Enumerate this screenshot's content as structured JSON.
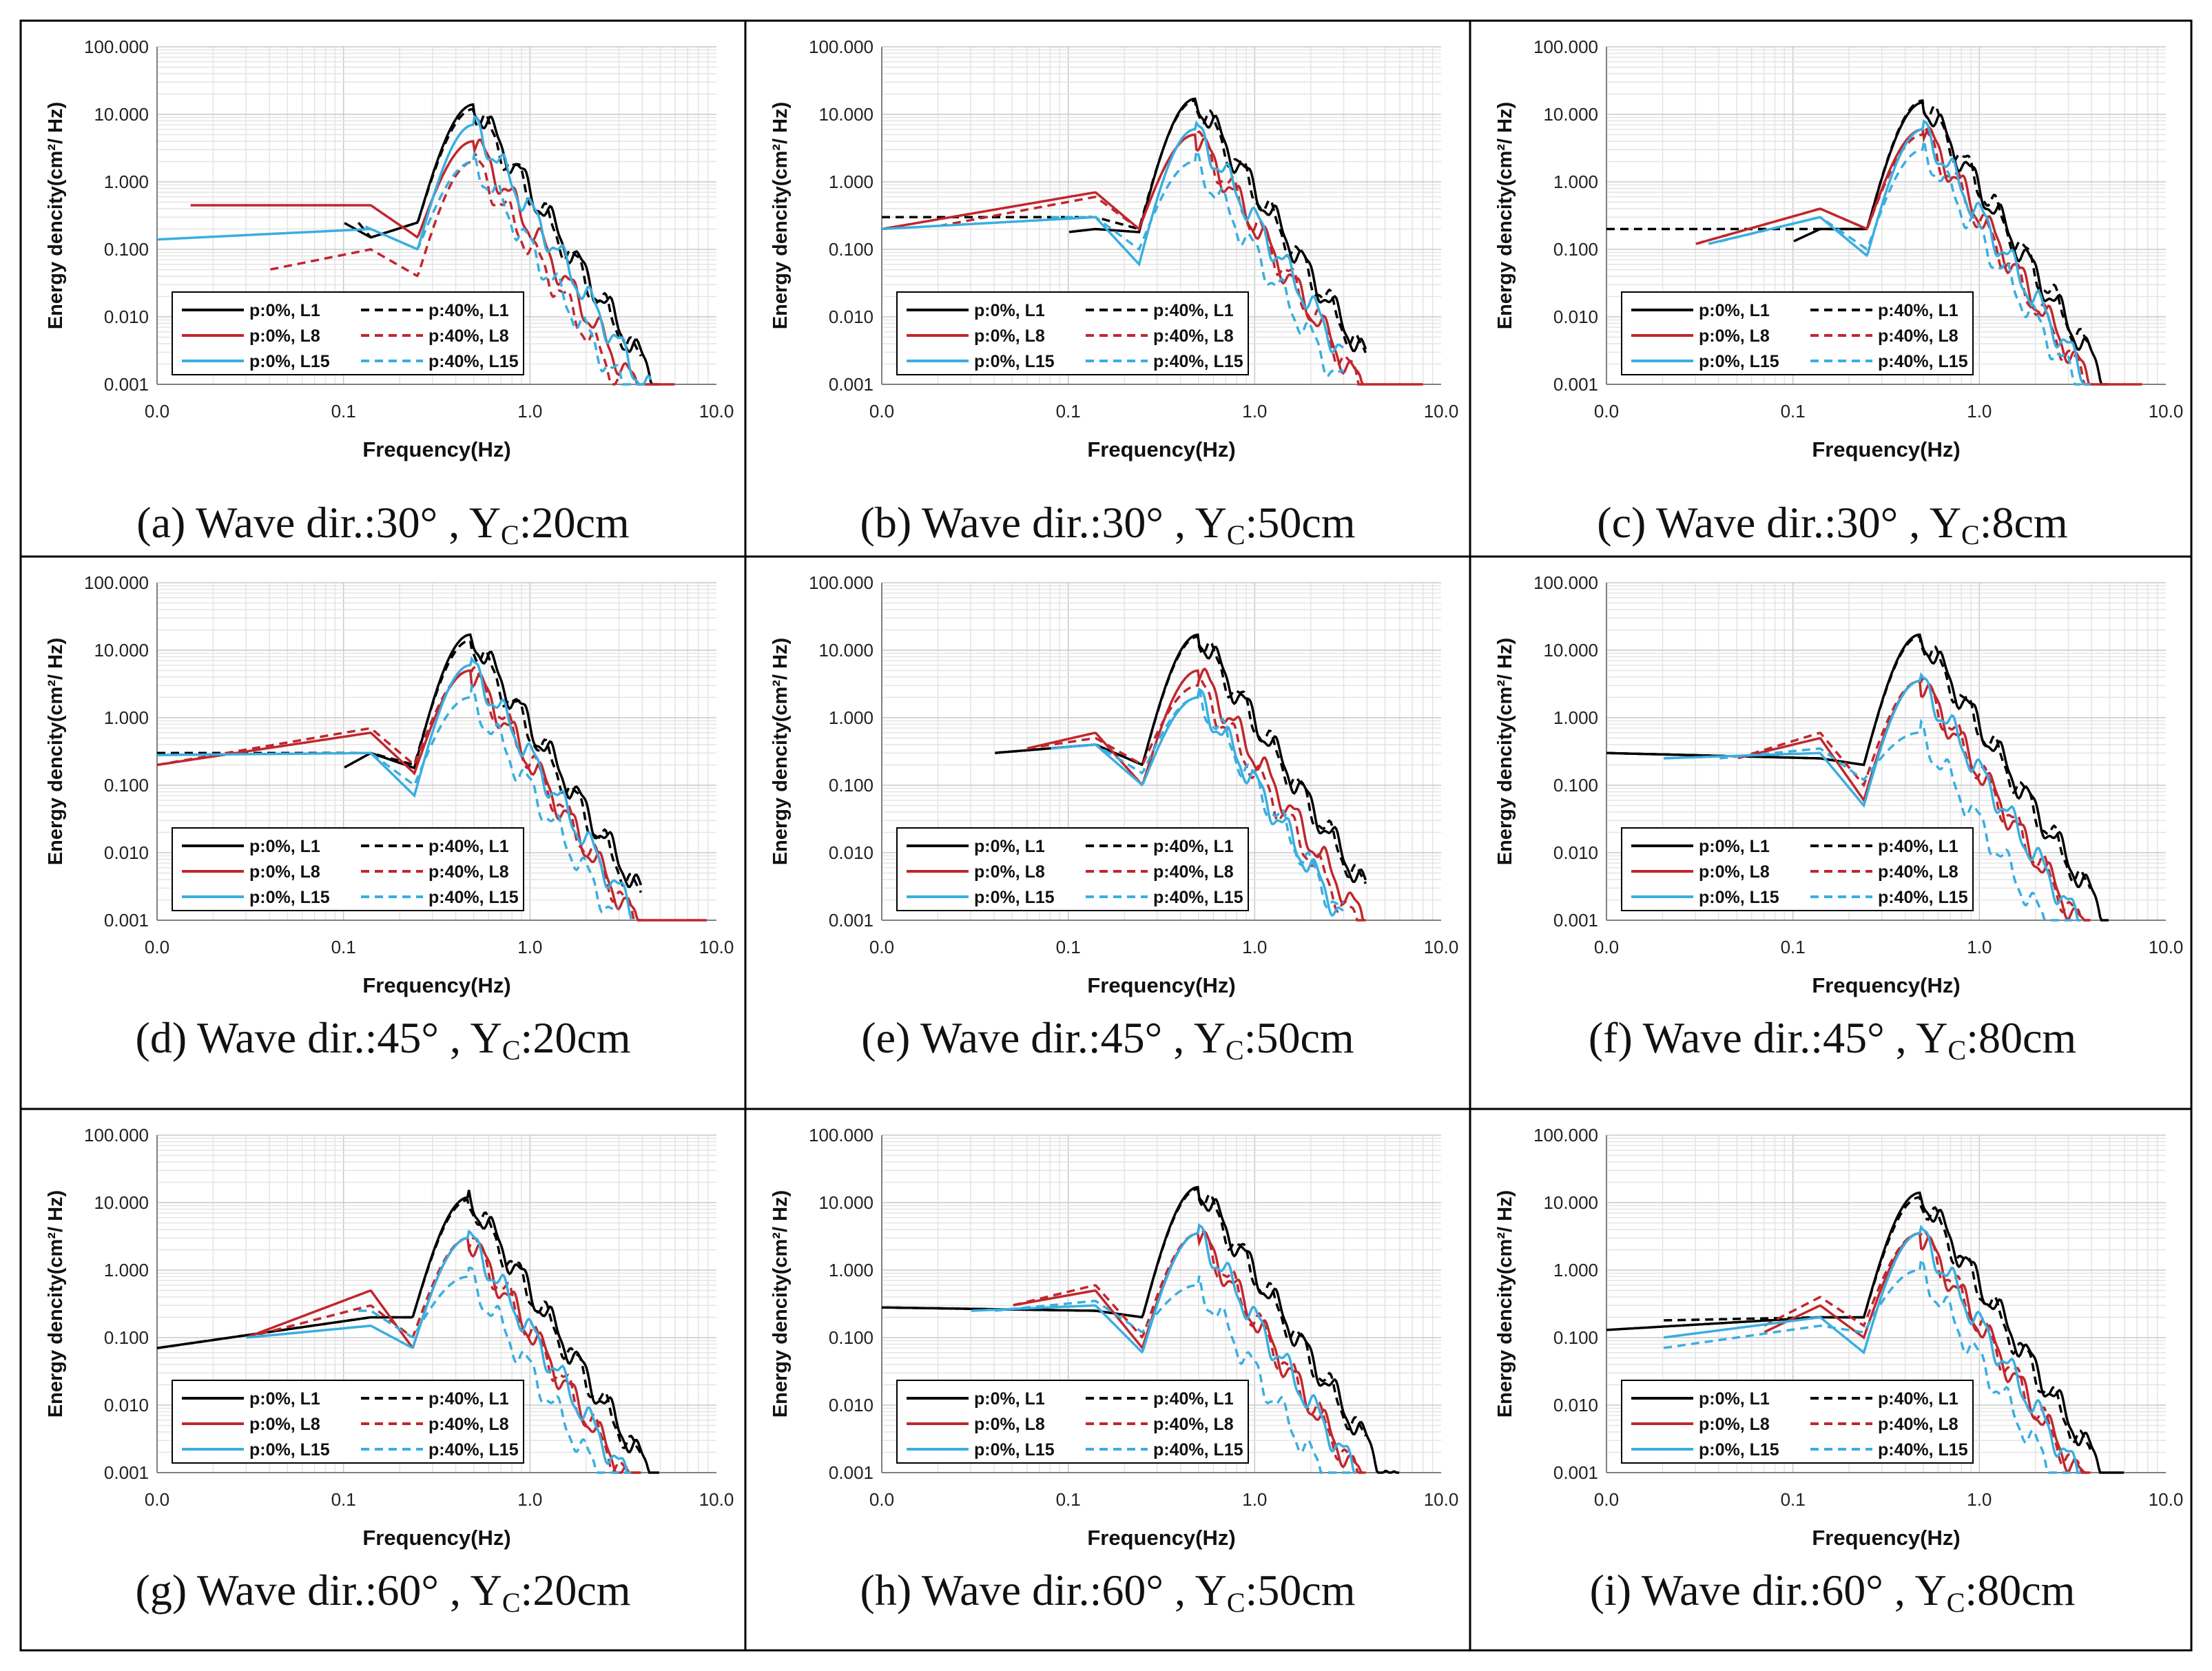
{
  "figure": {
    "panels": [
      {
        "caption": "(a) Wave dir.:30° , Y",
        "subscript": "C",
        "caption_tail": ":20cm"
      },
      {
        "caption": "(b) Wave dir.:30° , Y",
        "subscript": "C",
        "caption_tail": ":50cm"
      },
      {
        "caption": "(c) Wave dir.:30° , Y",
        "subscript": "C",
        "caption_tail": ":8cm"
      },
      {
        "caption": "(d) Wave dir.:45° , Y",
        "subscript": "C",
        "caption_tail": ":20cm"
      },
      {
        "caption": "(e) Wave dir.:45° , Y",
        "subscript": "C",
        "caption_tail": ":50cm"
      },
      {
        "caption": "(f) Wave dir.:45° , Y",
        "subscript": "C",
        "caption_tail": ":80cm"
      },
      {
        "caption": "(g) Wave dir.:60° , Y",
        "subscript": "C",
        "caption_tail": ":20cm"
      },
      {
        "caption": "(h) Wave dir.:60° , Y",
        "subscript": "C",
        "caption_tail": ":50cm"
      },
      {
        "caption": "(i) Wave dir.:60° , Y",
        "subscript": "C",
        "caption_tail": ":80cm"
      }
    ]
  },
  "chart_data": {
    "type": "line",
    "xscale": "log",
    "yscale": "log",
    "xlabel": "Frequency(Hz)",
    "ylabel": "Energy dencity(cm²/ Hz)",
    "xlim": [
      0.01,
      10
    ],
    "ylim": [
      0.001,
      100
    ],
    "xtick_labels": [
      "0.0",
      "0.1",
      "1.0",
      "10.0"
    ],
    "ytick_labels": [
      "0.001",
      "0.010",
      "0.100",
      "1.000",
      "10.000",
      "100.000"
    ],
    "legend_entries": [
      "p:0%, L1",
      "p:40%, L1",
      "p:0%, L8",
      "p:40%, L8",
      "p:0%, L15",
      "p:40%, L15"
    ],
    "series_style": {
      "p:0%, L1": {
        "color": "#000000",
        "dash": "solid"
      },
      "p:40%, L1": {
        "color": "#000000",
        "dash": "dashed"
      },
      "p:0%, L8": {
        "color": "#c0272d",
        "dash": "solid"
      },
      "p:40%, L8": {
        "color": "#c0272d",
        "dash": "dashed"
      },
      "p:0%, L15": {
        "color": "#3aaee0",
        "dash": "solid"
      },
      "p:40%, L15": {
        "color": "#3aaee0",
        "dash": "dashed"
      }
    },
    "panels": [
      {
        "id": "a",
        "fstart": [
          0.1,
          0.12,
          0.015,
          0.04,
          0.01,
          0.13
        ],
        "levels": [
          0.25,
          0.25,
          0.45,
          0.05,
          0.14,
          0.22
        ],
        "peaks": [
          14,
          12,
          4,
          2,
          7,
          2
        ],
        "peak_f": 0.5,
        "valley": [
          0.25,
          0.25,
          0.15,
          0.04,
          0.1,
          0.1
        ],
        "hump": [
          0.15,
          0.15,
          0.45,
          0.1,
          0.2,
          0.2
        ],
        "fend": [
          5,
          4,
          6,
          3,
          4.5,
          4
        ]
      },
      {
        "id": "b",
        "fstart": [
          0.1,
          0.01,
          0.01,
          0.02,
          0.01,
          0.08
        ],
        "levels": [
          0.18,
          0.3,
          0.2,
          0.22,
          0.2,
          0.3
        ],
        "peaks": [
          17,
          16,
          5,
          5,
          6,
          2
        ],
        "peak_f": 0.48,
        "valley": [
          0.18,
          0.2,
          0.2,
          0.2,
          0.06,
          0.1
        ],
        "hump": [
          0.2,
          0.3,
          0.7,
          0.6,
          0.3,
          0.3
        ],
        "fend": [
          4,
          4,
          8,
          4,
          3,
          3
        ]
      },
      {
        "id": "c",
        "fstart": [
          0.1,
          0.01,
          0.03,
          0.03,
          0.035,
          0.04
        ],
        "levels": [
          0.13,
          0.2,
          0.12,
          0.12,
          0.12,
          0.13
        ],
        "peaks": [
          15,
          16,
          6,
          5,
          6,
          3
        ],
        "peak_f": 0.5,
        "valley": [
          0.2,
          0.2,
          0.2,
          0.2,
          0.08,
          0.1
        ],
        "hump": [
          0.2,
          0.2,
          0.4,
          0.4,
          0.3,
          0.3
        ],
        "fend": [
          5,
          4,
          7.5,
          4,
          4,
          3.5
        ]
      },
      {
        "id": "d",
        "fstart": [
          0.1,
          0.01,
          0.01,
          0.01,
          0.01,
          0.12
        ],
        "levels": [
          0.18,
          0.3,
          0.2,
          0.2,
          0.28,
          0.3
        ],
        "peaks": [
          17,
          14,
          5,
          5,
          6,
          2
        ],
        "peak_f": 0.48,
        "valley": [
          0.18,
          0.2,
          0.15,
          0.2,
          0.07,
          0.1
        ],
        "hump": [
          0.3,
          0.3,
          0.6,
          0.7,
          0.3,
          0.3
        ],
        "fend": [
          4,
          4,
          9,
          4,
          3.5,
          3
        ]
      },
      {
        "id": "e",
        "fstart": [
          0.04,
          0.04,
          0.06,
          0.06,
          0.08,
          0.08
        ],
        "levels": [
          0.3,
          0.3,
          0.35,
          0.35,
          0.35,
          0.35
        ],
        "peaks": [
          17,
          16,
          5,
          3,
          2,
          2
        ],
        "peak_f": 0.5,
        "valley": [
          0.2,
          0.2,
          0.1,
          0.2,
          0.1,
          0.15
        ],
        "hump": [
          0.4,
          0.4,
          0.6,
          0.5,
          0.4,
          0.4
        ],
        "fend": [
          4,
          4,
          4,
          4,
          3,
          3
        ]
      },
      {
        "id": "f",
        "fstart": [
          0.01,
          0.01,
          0.05,
          0.05,
          0.02,
          0.04
        ],
        "levels": [
          0.3,
          0.3,
          0.25,
          0.25,
          0.25,
          0.25
        ],
        "peaks": [
          17,
          16,
          3.5,
          3.5,
          3.5,
          0.6
        ],
        "peak_f": 0.48,
        "valley": [
          0.2,
          0.2,
          0.06,
          0.1,
          0.05,
          0.12
        ],
        "hump": [
          0.25,
          0.25,
          0.5,
          0.6,
          0.3,
          0.35
        ],
        "fend": [
          5,
          4,
          4,
          4,
          3.5,
          3.5
        ]
      },
      {
        "id": "g",
        "fstart": [
          0.01,
          0.01,
          0.03,
          0.03,
          0.03,
          0.12
        ],
        "levels": [
          0.07,
          0.07,
          0.1,
          0.1,
          0.1,
          0.25
        ],
        "peaks": [
          12,
          11,
          3,
          3,
          3,
          0.8
        ],
        "peak_f": 0.47,
        "valley": [
          0.2,
          0.2,
          0.07,
          0.1,
          0.07,
          0.1
        ],
        "hump": [
          0.2,
          0.2,
          0.5,
          0.3,
          0.15,
          0.25
        ],
        "fend": [
          5,
          4,
          4,
          4,
          3.5,
          3.5
        ]
      },
      {
        "id": "h",
        "fstart": [
          0.01,
          0.01,
          0.05,
          0.05,
          0.03,
          0.04
        ],
        "levels": [
          0.28,
          0.28,
          0.3,
          0.3,
          0.25,
          0.25
        ],
        "peaks": [
          17,
          16,
          3.5,
          3.5,
          3.5,
          0.6
        ],
        "peak_f": 0.5,
        "valley": [
          0.2,
          0.2,
          0.07,
          0.1,
          0.06,
          0.12
        ],
        "hump": [
          0.25,
          0.25,
          0.5,
          0.6,
          0.3,
          0.35
        ],
        "fend": [
          6,
          4,
          4,
          4,
          3.5,
          3.5
        ]
      },
      {
        "id": "i",
        "fstart": [
          0.01,
          0.02,
          0.07,
          0.07,
          0.02,
          0.02
        ],
        "levels": [
          0.13,
          0.18,
          0.12,
          0.15,
          0.1,
          0.07
        ],
        "peaks": [
          14,
          12,
          3.5,
          3.5,
          3.5,
          1
        ],
        "peak_f": 0.48,
        "valley": [
          0.2,
          0.2,
          0.1,
          0.15,
          0.06,
          0.12
        ],
        "hump": [
          0.2,
          0.2,
          0.3,
          0.4,
          0.2,
          0.15
        ],
        "fend": [
          6,
          4,
          4,
          4,
          3.5,
          3.5
        ]
      }
    ]
  }
}
